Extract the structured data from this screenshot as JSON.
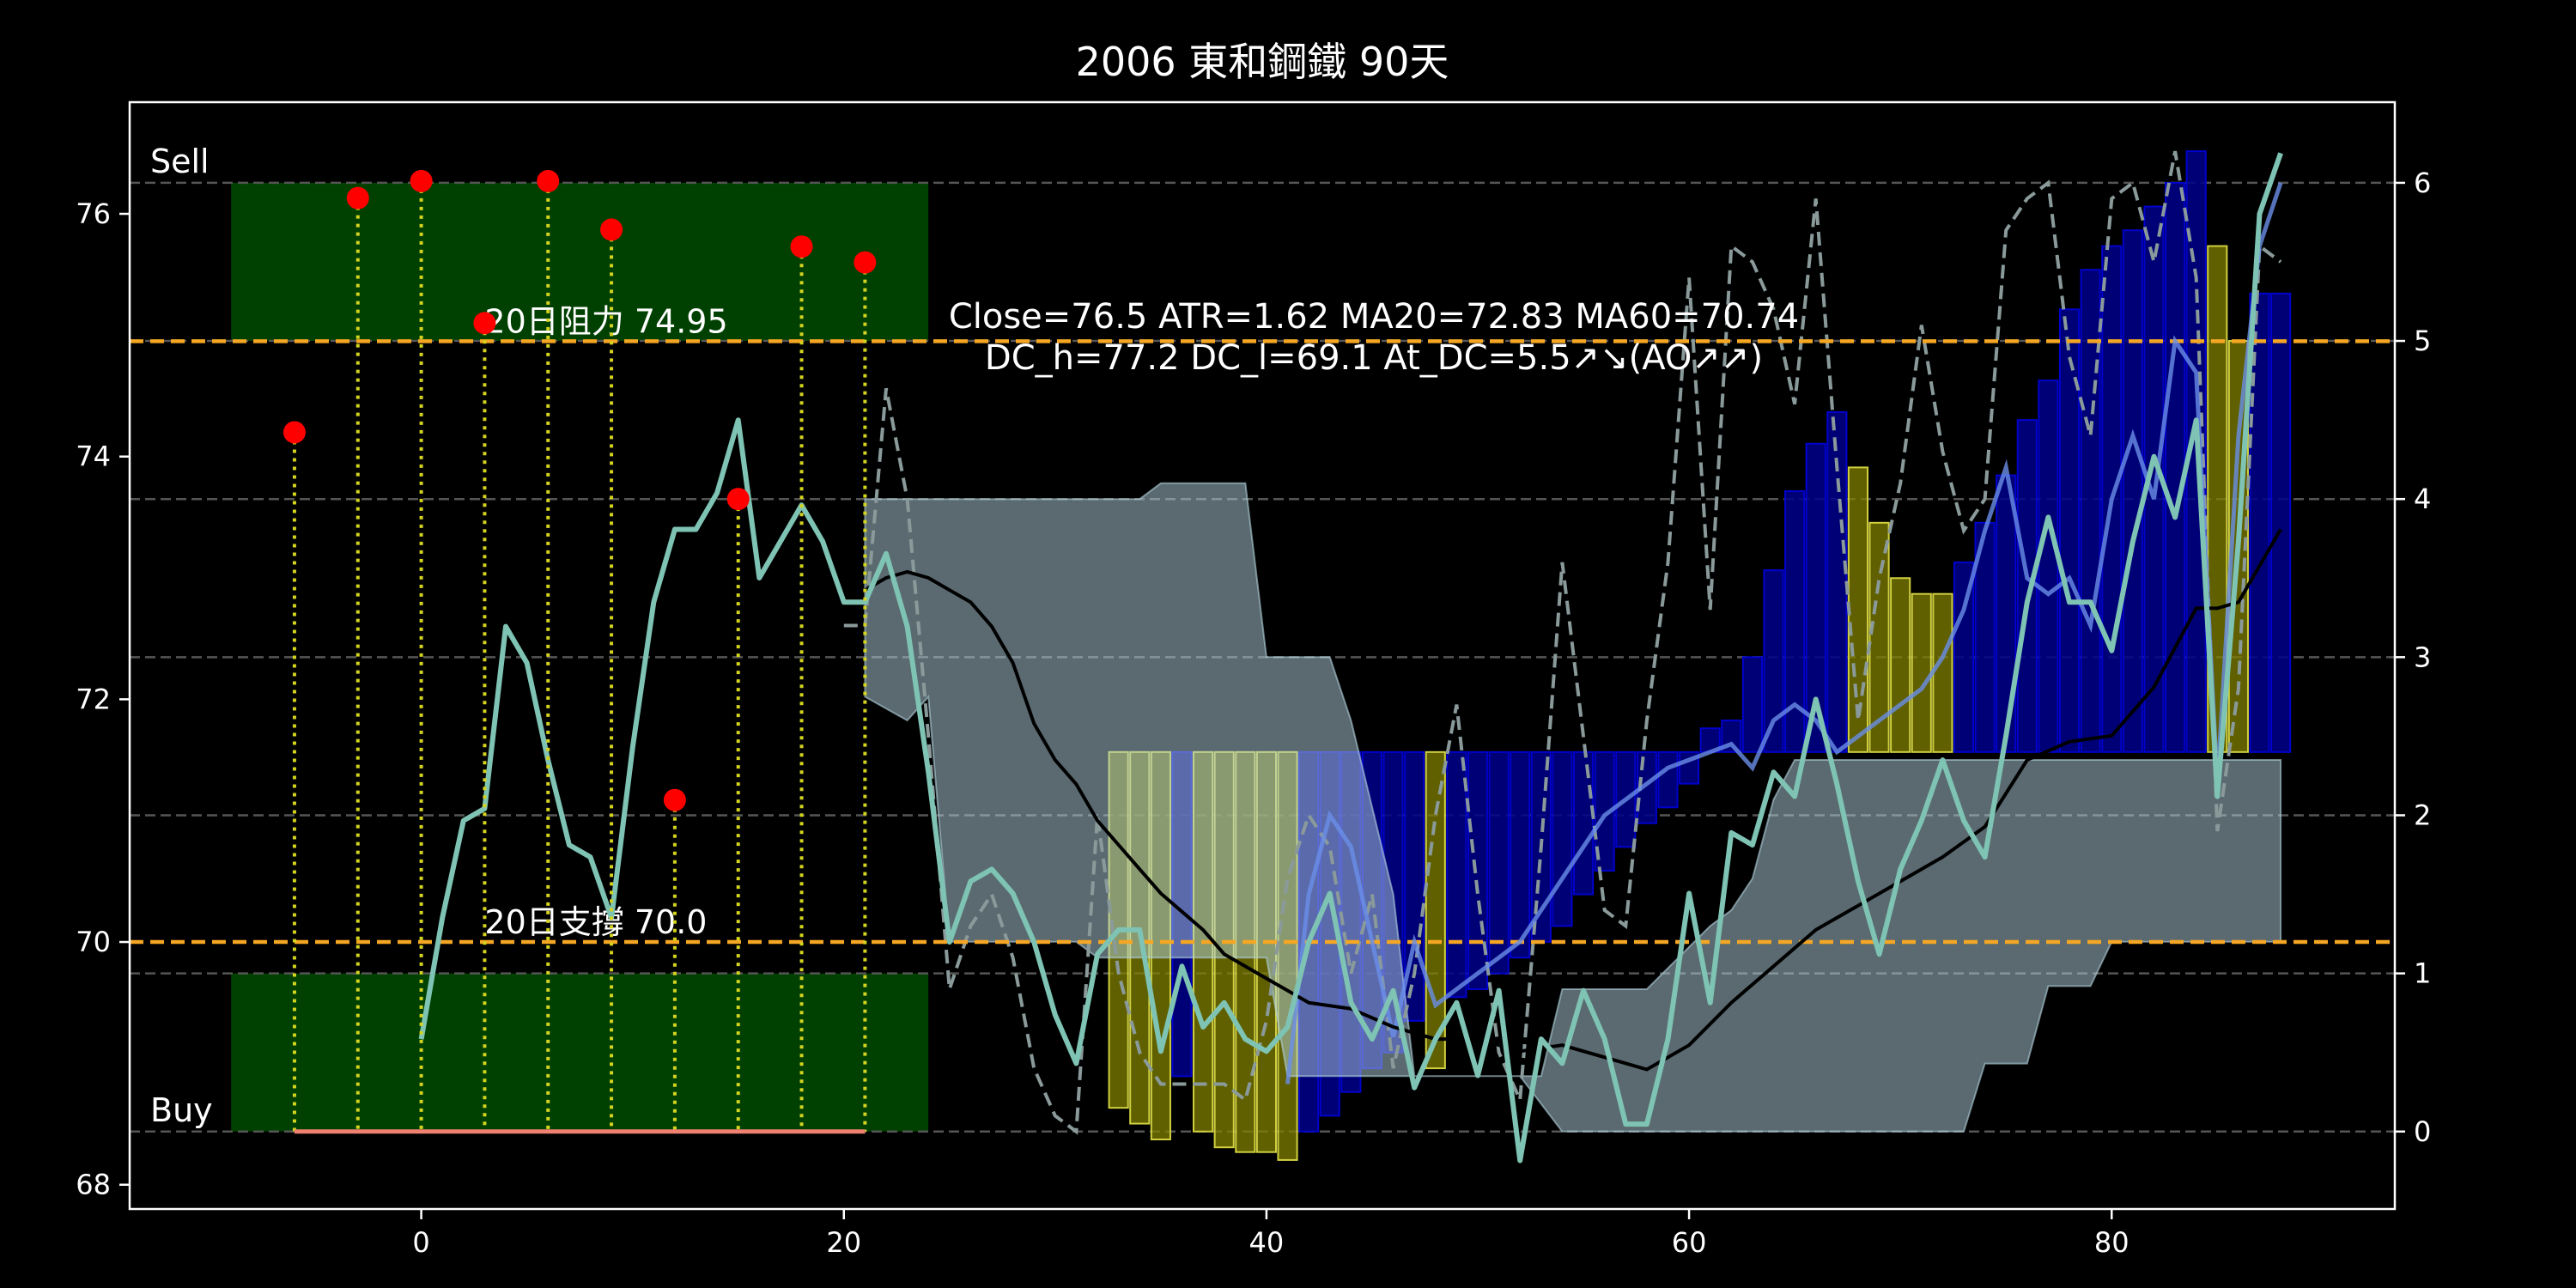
{
  "chart_data": {
    "type": "line",
    "title": "2006 東和鋼鐵 90天",
    "xlim": [
      -13.8,
      93.4
    ],
    "xticks": [
      0,
      20,
      40,
      60,
      80
    ],
    "ylim": [
      67.8,
      76.92
    ],
    "yticks": [
      68,
      70,
      72,
      74,
      76
    ],
    "y2lim": [
      -0.49,
      6.51
    ],
    "y2ticks": [
      0,
      1,
      2,
      3,
      4,
      5,
      6
    ],
    "y2_grid": true,
    "annotations": [
      "Close=76.5 ATR=1.62 MA20=72.83 MA60=70.74",
      "DC_h=77.2 DC_l=69.1 At_DC=5.5↗↘(AO↗↗)"
    ],
    "levels": [
      {
        "label": "20日阻力 74.95",
        "value": 74.95
      },
      {
        "label": "20日支撐 70.0",
        "value": 70
      }
    ],
    "level_color": "#f5a623",
    "zones": [
      {
        "label": "Sell",
        "x": [
          -9,
          24
        ],
        "y2": [
          5,
          6
        ]
      },
      {
        "label": "Buy",
        "x": [
          -9,
          24
        ],
        "y2": [
          0,
          1
        ]
      }
    ],
    "zone_color": "#004000",
    "markers": {
      "x": [
        -6,
        -3,
        0,
        3,
        6,
        9,
        12,
        15,
        18,
        21
      ],
      "values": [
        74.2,
        76.13,
        76.27,
        75.1,
        76.27,
        75.87,
        71.17,
        73.65,
        75.73,
        75.6
      ],
      "color": "#ff0000"
    },
    "close": {
      "color": "#7ec3b3",
      "x": [
        0,
        1,
        2,
        3,
        4,
        5,
        6,
        7,
        8,
        9,
        10,
        11,
        12,
        13,
        14,
        15,
        16,
        17,
        18,
        19,
        20,
        21,
        22,
        23,
        24,
        25,
        26,
        27,
        28,
        29,
        30,
        31,
        32,
        33,
        34,
        35,
        36,
        37,
        38,
        39,
        40,
        41,
        42,
        43,
        44,
        45,
        46,
        47,
        48,
        49,
        50,
        51,
        52,
        53,
        54,
        55,
        56,
        57,
        58,
        59,
        60,
        61,
        62,
        63,
        64,
        65,
        66,
        67,
        68,
        69,
        70,
        71,
        72,
        73,
        74,
        75,
        76,
        77,
        78,
        79,
        80,
        81,
        82,
        83,
        84,
        85,
        86,
        87,
        88
      ],
      "values": [
        69.2,
        70.2,
        71.0,
        71.1,
        72.6,
        72.3,
        71.5,
        70.8,
        70.7,
        70.2,
        71.6,
        72.8,
        73.4,
        73.4,
        73.7,
        74.3,
        73.0,
        73.3,
        73.6,
        73.3,
        72.8,
        72.8,
        73.2,
        72.6,
        71.4,
        70.0,
        70.5,
        70.6,
        70.4,
        70.0,
        69.4,
        69.0,
        69.9,
        70.1,
        70.1,
        69.1,
        69.8,
        69.3,
        69.5,
        69.2,
        69.1,
        69.3,
        70.0,
        70.4,
        69.5,
        69.2,
        69.6,
        68.8,
        69.2,
        69.5,
        68.9,
        69.6,
        68.2,
        69.2,
        69.0,
        69.6,
        69.2,
        68.5,
        68.5,
        69.2,
        70.4,
        69.5,
        70.9,
        70.8,
        71.4,
        71.2,
        72.0,
        71.3,
        70.5,
        69.9,
        70.6,
        71.0,
        71.5,
        71.0,
        70.7,
        71.7,
        72.8,
        73.5,
        72.8,
        72.8,
        72.4,
        73.3,
        74.0,
        73.5,
        74.3,
        71.2,
        73.3,
        76.0,
        76.5
      ]
    },
    "ma": {
      "color": "#000000",
      "x": [
        21,
        22,
        23,
        24,
        25,
        26,
        27,
        28,
        29,
        30,
        31,
        32,
        33,
        34,
        35,
        36,
        37,
        38,
        40,
        42,
        44,
        46,
        48,
        50,
        52,
        54,
        56,
        58,
        60,
        62,
        64,
        66,
        68,
        70,
        72,
        74,
        76,
        78,
        80,
        82,
        84,
        85,
        86,
        88
      ],
      "values": [
        72.9,
        73.0,
        73.05,
        73.0,
        72.9,
        72.8,
        72.6,
        72.3,
        71.8,
        71.5,
        71.3,
        71.0,
        70.8,
        70.6,
        70.4,
        70.25,
        70.1,
        69.9,
        69.7,
        69.5,
        69.45,
        69.3,
        69.2,
        69.2,
        69.1,
        69.15,
        69.05,
        68.95,
        69.15,
        69.5,
        69.8,
        70.1,
        70.3,
        70.5,
        70.7,
        70.95,
        71.5,
        71.65,
        71.7,
        72.1,
        72.75,
        72.75,
        72.8,
        73.4
      ]
    },
    "oscillator": {
      "color": "#8a9a9a",
      "axis": "y2",
      "x": [
        20,
        21,
        22,
        23,
        24,
        25,
        26,
        27,
        28,
        29,
        30,
        31,
        32,
        33,
        34,
        35,
        36,
        37,
        38,
        39,
        40,
        41,
        42,
        43,
        44,
        45,
        46,
        47,
        48,
        49,
        50,
        51,
        52,
        53,
        54,
        55,
        56,
        57,
        58,
        59,
        60,
        61,
        62,
        63,
        64,
        65,
        66,
        67,
        68,
        69,
        70,
        71,
        72,
        73,
        74,
        75,
        76,
        77,
        78,
        79,
        80,
        81,
        82,
        83,
        84,
        85,
        86,
        87,
        88
      ],
      "values": [
        3.2,
        3.2,
        4.7,
        4.0,
        2.5,
        0.9,
        1.3,
        1.5,
        1.1,
        0.4,
        0.1,
        0.0,
        2.0,
        1.0,
        0.5,
        0.3,
        0.3,
        0.3,
        0.3,
        0.2,
        0.7,
        1.6,
        2.0,
        1.8,
        1.0,
        1.5,
        0.4,
        1.0,
        2.0,
        2.7,
        1.5,
        0.5,
        0.2,
        1.8,
        3.6,
        2.5,
        1.4,
        1.3,
        2.6,
        3.6,
        5.4,
        3.3,
        5.6,
        5.5,
        5.2,
        4.6,
        5.9,
        4.2,
        2.6,
        3.5,
        4.1,
        5.1,
        4.3,
        3.8,
        4.0,
        5.7,
        5.9,
        6.0,
        4.9,
        4.4,
        5.9,
        6.0,
        5.5,
        6.2,
        5.4,
        1.9,
        2.8,
        5.6,
        5.5
      ]
    },
    "trend": {
      "color": "#6a8fe8",
      "axis": "y2",
      "x": [
        41,
        42,
        43,
        44,
        45,
        46,
        47,
        48,
        49,
        50,
        51,
        52,
        53,
        54,
        55,
        56,
        57,
        58,
        59,
        60,
        61,
        62,
        63,
        64,
        65,
        66,
        67,
        68,
        69,
        70,
        71,
        72,
        73,
        74,
        75,
        76,
        77,
        78,
        79,
        80,
        81,
        82,
        83,
        84,
        85,
        86,
        87,
        88
      ],
      "values": [
        0.3,
        1.5,
        2.0,
        1.8,
        1.2,
        0.6,
        1.2,
        0.8,
        0.9,
        1.0,
        1.1,
        1.2,
        1.4,
        1.6,
        1.8,
        2.0,
        2.1,
        2.2,
        2.3,
        2.35,
        2.4,
        2.45,
        2.3,
        2.6,
        2.7,
        2.6,
        2.4,
        2.5,
        2.6,
        2.7,
        2.8,
        3.0,
        3.3,
        3.8,
        4.2,
        3.5,
        3.4,
        3.5,
        3.2,
        4.0,
        4.4,
        4.0,
        5.0,
        4.8,
        2.2,
        4.4,
        5.6,
        6.0
      ]
    },
    "bars": {
      "axis": "y2",
      "bar_bottom": 2.4,
      "x": [
        33,
        34,
        35,
        36,
        37,
        38,
        39,
        40,
        41,
        42,
        43,
        44,
        45,
        46,
        47,
        48,
        49,
        50,
        51,
        52,
        53,
        54,
        55,
        56,
        57,
        58,
        59,
        60,
        61,
        62,
        63,
        64,
        65,
        66,
        67,
        68,
        69,
        70,
        71,
        72,
        73,
        74,
        75,
        76,
        77,
        78,
        79,
        80,
        81,
        82,
        83,
        84,
        85,
        86,
        87,
        88
      ],
      "values": [
        0.15,
        0.05,
        -0.05,
        0.35,
        0.0,
        -0.1,
        -0.13,
        -0.13,
        -0.18,
        0.0,
        0.1,
        0.25,
        0.4,
        0.5,
        0.7,
        0.4,
        0.85,
        0.9,
        1.0,
        1.1,
        1.2,
        1.3,
        1.5,
        1.65,
        1.8,
        1.95,
        2.05,
        2.2,
        2.55,
        2.6,
        3.0,
        3.55,
        4.05,
        4.35,
        4.55,
        4.2,
        3.85,
        3.5,
        3.4,
        3.4,
        3.6,
        3.85,
        4.15,
        4.5,
        4.75,
        5.2,
        5.45,
        5.6,
        5.7,
        5.85,
        6.0,
        6.2,
        5.6,
        5.0,
        5.3,
        5.3
      ],
      "colors": [
        "#808000",
        "#808000",
        "#808000",
        "#00008b",
        "#808000",
        "#808000",
        "#808000",
        "#808000",
        "#808000",
        "#00008b",
        "#00008b",
        "#00008b",
        "#00008b",
        "#00008b",
        "#00008b",
        "#808000",
        "#00008b",
        "#00008b",
        "#00008b",
        "#00008b",
        "#00008b",
        "#00008b",
        "#00008b",
        "#00008b",
        "#00008b",
        "#00008b",
        "#00008b",
        "#00008b",
        "#00008b",
        "#00008b",
        "#00008b",
        "#00008b",
        "#00008b",
        "#00008b",
        "#00008b",
        "#808000",
        "#808000",
        "#808000",
        "#808000",
        "#808000",
        "#00008b",
        "#00008b",
        "#00008b",
        "#00008b",
        "#00008b",
        "#00008b",
        "#00008b",
        "#00008b",
        "#00008b",
        "#00008b",
        "#00008b",
        "#00008b",
        "#808000",
        "#808000",
        "#00008b",
        "#00008b"
      ]
    },
    "band": {
      "axis": "y2",
      "color": "#b4d4e0",
      "upper": {
        "x": [
          21,
          34,
          35,
          39,
          40,
          43,
          44,
          46,
          47,
          53,
          54,
          58,
          61,
          62,
          63,
          64,
          65,
          88
        ],
        "values": [
          4.0,
          4.0,
          4.1,
          4.1,
          3.0,
          3.0,
          2.6,
          1.5,
          0.35,
          0.35,
          0.9,
          0.9,
          1.3,
          1.4,
          1.6,
          2.1,
          2.35,
          2.35
        ]
      },
      "lower": {
        "x": [
          21,
          23,
          24,
          25,
          31,
          32,
          40,
          41,
          52,
          54,
          73,
          74,
          76,
          77,
          79,
          80,
          88
        ],
        "values": [
          2.75,
          2.6,
          2.75,
          1.2,
          1.2,
          1.1,
          1.1,
          0.35,
          0.35,
          0.0,
          0.0,
          0.43,
          0.43,
          0.92,
          0.92,
          1.2,
          1.2
        ]
      }
    }
  }
}
